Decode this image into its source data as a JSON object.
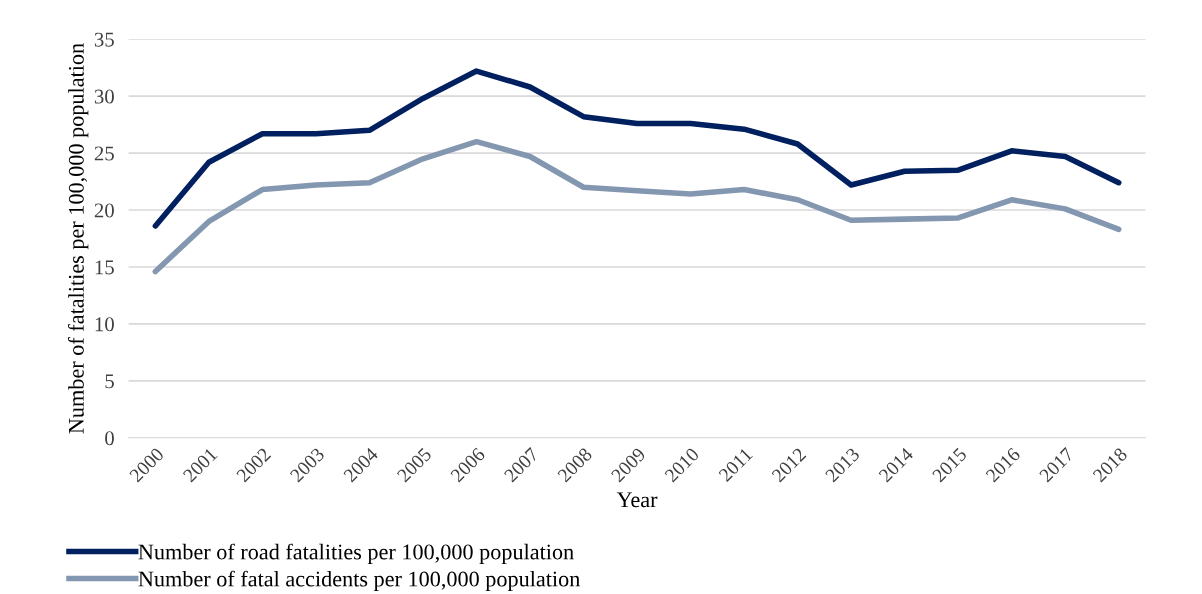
{
  "chart_data": {
    "type": "line",
    "xlabel": "Year",
    "ylabel": "Number of fatalities per 100,000 population",
    "categories": [
      "2000",
      "2001",
      "2002",
      "2003",
      "2004",
      "2005",
      "2006",
      "2007",
      "2008",
      "2009",
      "2010",
      "2011",
      "2012",
      "2013",
      "2014",
      "2015",
      "2016",
      "2017",
      "2018"
    ],
    "series": [
      {
        "name": "Number of road fatalities per 100,000 population",
        "color": "#002060",
        "values": [
          18.6,
          24.2,
          26.7,
          26.7,
          27.0,
          29.8,
          32.2,
          30.8,
          28.2,
          27.6,
          27.6,
          27.1,
          25.8,
          22.2,
          23.4,
          23.5,
          25.2,
          24.7,
          22.4
        ]
      },
      {
        "name": "Number of fatal accidents per 100,000 population",
        "color": "#8497b0",
        "values": [
          14.6,
          19.0,
          21.8,
          22.2,
          22.4,
          24.5,
          26.0,
          24.7,
          22.0,
          21.7,
          21.4,
          21.8,
          20.9,
          19.1,
          19.2,
          19.3,
          20.9,
          20.1,
          18.3
        ]
      }
    ],
    "ylim": [
      0,
      35
    ],
    "yticks": [
      0,
      5,
      10,
      15,
      20,
      25,
      30,
      35
    ],
    "grid": "y",
    "legend": "bottom left",
    "marker": "none",
    "line_style": "solid"
  }
}
